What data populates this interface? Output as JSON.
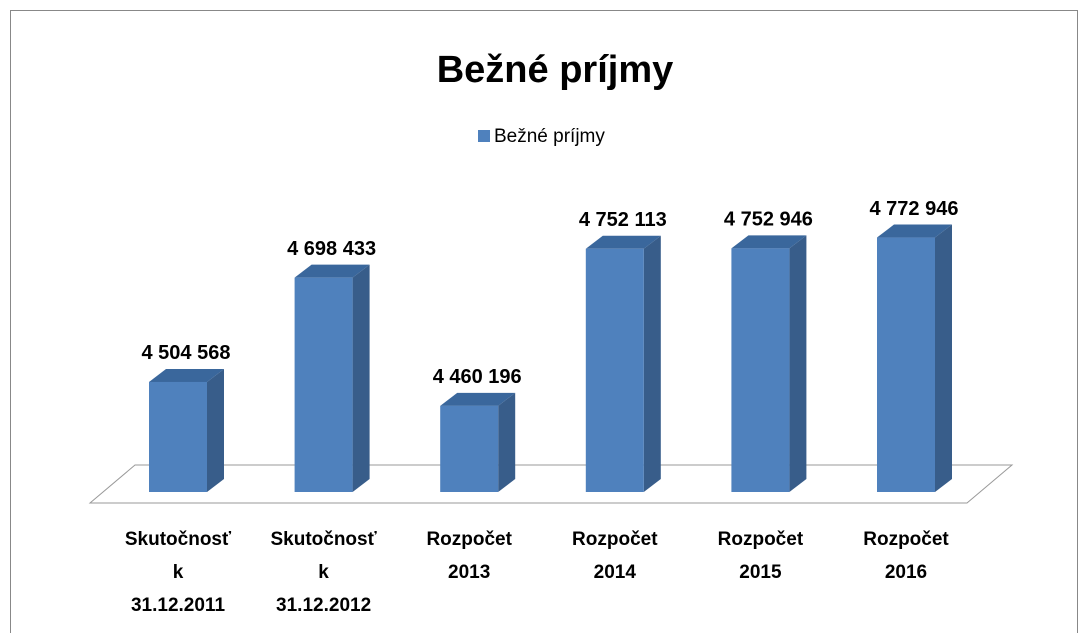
{
  "chart_data": {
    "type": "bar3d",
    "title": "Bežné príjmy",
    "categories": [
      "Skutočnosť k 31.12.2011",
      "Skutočnosť k 31.12.2012",
      "Rozpočet 2013",
      "Rozpočet 2014",
      "Rozpočet 2015",
      "Rozpočet 2016"
    ],
    "series": [
      {
        "name": "Bežné príjmy",
        "color": "#4f81bd",
        "values": [
          4504568,
          4698433,
          4460196,
          4752113,
          4752946,
          4772946
        ],
        "value_labels": [
          "4 504 568",
          "4 698 433",
          "4 460 196",
          "4 752 113",
          "4 752 946",
          "4 772 946"
        ]
      }
    ],
    "ylim": [
      4300000,
      4800000
    ],
    "legend": "top"
  }
}
